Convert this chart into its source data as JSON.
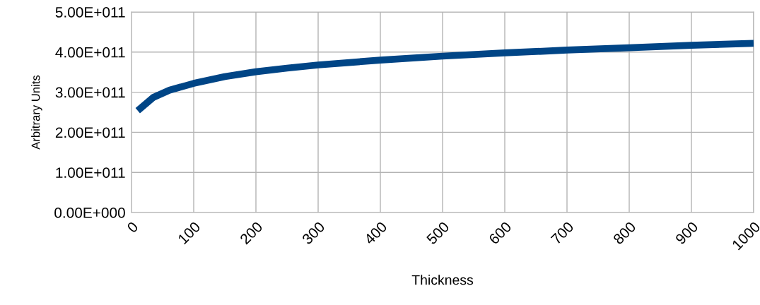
{
  "chart_data": {
    "type": "line",
    "xlabel": "Thickness",
    "ylabel": "Arbitrary Units",
    "x": [
      10,
      35,
      61,
      100,
      150,
      200,
      250,
      300,
      400,
      500,
      600,
      700,
      800,
      900,
      1000
    ],
    "series": [
      {
        "color": "#004586",
        "values": [
          254000000000.0,
          287000000000.0,
          305000000000.0,
          322000000000.0,
          339000000000.0,
          351000000000.0,
          360000000000.0,
          368000000000.0,
          380000000000.0,
          390000000000.0,
          398000000000.0,
          405000000000.0,
          411000000000.0,
          417000000000.0,
          422000000000.0
        ]
      }
    ],
    "xlim": [
      0,
      1000
    ],
    "xticks": [
      0,
      100,
      200,
      300,
      400,
      500,
      600,
      700,
      800,
      900,
      1000
    ],
    "ylim": [
      0,
      500000000000.0
    ],
    "yticks": [
      {
        "value": 0,
        "label": "0.00E+000"
      },
      {
        "value": 100000000000.0,
        "label": "1.00E+011"
      },
      {
        "value": 200000000000.0,
        "label": "2.00E+011"
      },
      {
        "value": 300000000000.0,
        "label": "3.00E+011"
      },
      {
        "value": 400000000000.0,
        "label": "4.00E+011"
      },
      {
        "value": 500000000000.0,
        "label": "5.00E+011"
      }
    ],
    "grid": true,
    "legend": false,
    "marker": "none",
    "line_style": "solid"
  }
}
